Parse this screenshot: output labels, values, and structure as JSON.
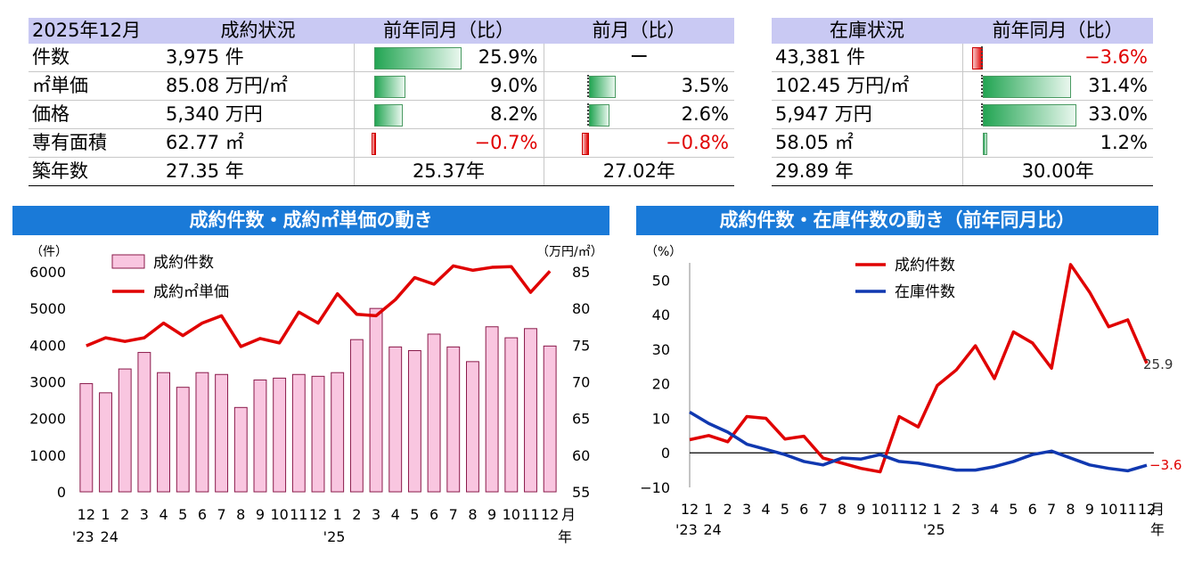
{
  "sales_table": {
    "headers": [
      "2025年12月",
      "成約状況",
      "前年同月（比）",
      "前月（比）"
    ],
    "rows": [
      {
        "label": "件数",
        "value": "3,975 件",
        "yoy": "25.9%",
        "yoy_num": 25.9,
        "mom": "ー",
        "mom_num": null
      },
      {
        "label": "㎡単価",
        "value": "85.08 万円/㎡",
        "yoy": "9.0%",
        "yoy_num": 9.0,
        "mom": "3.5%",
        "mom_num": 3.5
      },
      {
        "label": "価格",
        "value": "5,340 万円",
        "yoy": "8.2%",
        "yoy_num": 8.2,
        "mom": "2.6%",
        "mom_num": 2.6
      },
      {
        "label": "専有面積",
        "value": "62.77 ㎡",
        "yoy": "−0.7%",
        "yoy_num": -0.7,
        "mom": "−0.8%",
        "mom_num": -0.8
      },
      {
        "label": "築年数",
        "value": "27.35 年",
        "yoy": "25.37年",
        "yoy_num": null,
        "mom": "27.02年",
        "mom_num": null
      }
    ]
  },
  "stock_table": {
    "headers": [
      "在庫状況",
      "前年同月（比）"
    ],
    "rows": [
      {
        "value": "43,381 件",
        "yoy": "−3.6%",
        "yoy_num": -3.6
      },
      {
        "value": "102.45 万円/㎡",
        "yoy": "31.4%",
        "yoy_num": 31.4
      },
      {
        "value": "5,947 万円",
        "yoy": "33.0%",
        "yoy_num": 33.0
      },
      {
        "value": "58.05 ㎡",
        "yoy": "1.2%",
        "yoy_num": 1.2
      },
      {
        "value": "29.89 年",
        "yoy": "30.00年",
        "yoy_num": null
      }
    ]
  },
  "chart_data": [
    {
      "type": "bar+line",
      "title": "成約件数・成約㎡単価の動き",
      "ylabel_left": "（件）",
      "ylabel_right": "（万円/㎡）",
      "ylim_left": [
        0,
        6000
      ],
      "ylim_right": [
        55,
        85
      ],
      "yticks_left": [
        "0",
        "1000",
        "2000",
        "3000",
        "4000",
        "5000",
        "6000"
      ],
      "yticks_right": [
        "55",
        "60",
        "65",
        "70",
        "75",
        "80",
        "85"
      ],
      "categories": [
        "12",
        "1",
        "2",
        "3",
        "4",
        "5",
        "6",
        "7",
        "8",
        "9",
        "10",
        "11",
        "12",
        "1",
        "2",
        "3",
        "4",
        "5",
        "6",
        "7",
        "8",
        "9",
        "10",
        "11",
        "12"
      ],
      "year_labels": [
        "'23",
        "24",
        "'25"
      ],
      "month_suffix": [
        "月",
        "年"
      ],
      "legend_placement": "top-left",
      "series": [
        {
          "name": "成約件数",
          "kind": "bar",
          "axis": "left",
          "color": "#f9c6e0",
          "values": [
            2950,
            2700,
            3350,
            3800,
            3250,
            2850,
            3250,
            3200,
            2300,
            3050,
            3100,
            3200,
            3150,
            3250,
            4150,
            5000,
            3950,
            3850,
            4300,
            3950,
            3550,
            4500,
            4200,
            4450,
            3975
          ]
        },
        {
          "name": "成約㎡単価",
          "kind": "line",
          "axis": "right",
          "color": "#e00000",
          "values": [
            74.9,
            76.0,
            75.5,
            76.0,
            78.0,
            76.3,
            78.0,
            79.0,
            74.8,
            75.9,
            75.3,
            79.5,
            78.0,
            82.0,
            79.2,
            79.0,
            81.2,
            84.2,
            83.3,
            85.8,
            85.2,
            85.6,
            85.7,
            82.2,
            85.08
          ]
        }
      ]
    },
    {
      "type": "line",
      "title": "成約件数・在庫件数の動き（前年同月比）",
      "ylabel": "（%）",
      "ylim": [
        -10,
        55
      ],
      "yticks": [
        "−10",
        "0",
        "10",
        "20",
        "30",
        "40",
        "50"
      ],
      "categories": [
        "12",
        "1",
        "2",
        "3",
        "4",
        "5",
        "6",
        "7",
        "8",
        "9",
        "10",
        "11",
        "12",
        "1",
        "2",
        "3",
        "4",
        "5",
        "6",
        "7",
        "8",
        "9",
        "10",
        "11",
        "12"
      ],
      "year_labels": [
        "'23",
        "24",
        "'25"
      ],
      "month_suffix": [
        "月",
        "年"
      ],
      "legend_placement": "top-center",
      "end_labels": [
        "25.9",
        "−3.6"
      ],
      "series": [
        {
          "name": "成約件数",
          "color": "#e00000",
          "values": [
            3.8,
            5.0,
            3.2,
            10.5,
            10.0,
            4.0,
            4.8,
            -1.5,
            -3.0,
            -4.5,
            -5.5,
            10.5,
            7.5,
            19.5,
            24.0,
            31.0,
            21.5,
            35.0,
            31.8,
            24.5,
            54.5,
            46.5,
            36.5,
            38.5,
            25.9
          ]
        },
        {
          "name": "在庫件数",
          "color": "#1038b0",
          "values": [
            11.8,
            8.5,
            6.0,
            2.5,
            1.0,
            -0.5,
            -2.5,
            -3.5,
            -1.5,
            -1.8,
            -0.5,
            -2.5,
            -3.0,
            -4.0,
            -5.0,
            -5.0,
            -4.0,
            -2.5,
            -0.5,
            0.5,
            -1.5,
            -3.5,
            -4.5,
            -5.2,
            -3.6
          ]
        }
      ]
    }
  ]
}
